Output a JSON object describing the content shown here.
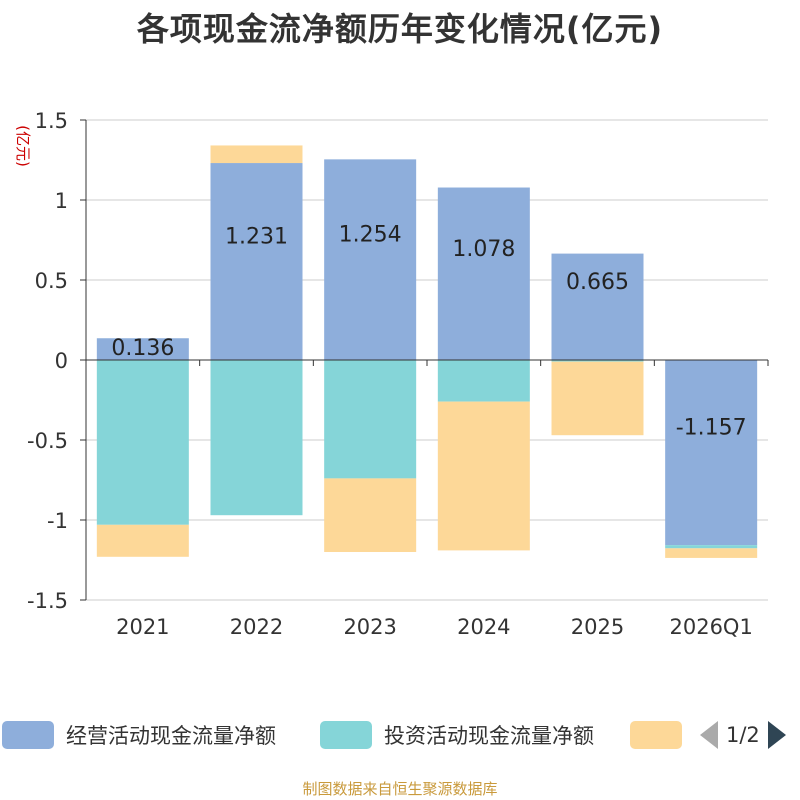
{
  "title": "各项现金流净额历年变化情况(亿元)",
  "source": "制图数据来自恒生聚源数据库",
  "legend_page": "1/2",
  "colors": {
    "operating": "#8eaedb",
    "investing": "#85d5d8",
    "financing": "#fdd898",
    "unit_label": "#cc0000"
  },
  "chart_data": {
    "type": "bar",
    "stacked": true,
    "categories": [
      "2021",
      "2022",
      "2023",
      "2024",
      "2025",
      "2026Q1"
    ],
    "ylabel": "(亿元)",
    "ylim": [
      -1.5,
      1.5
    ],
    "yticks": [
      1.5,
      1,
      0.5,
      0,
      -0.5,
      -1,
      -1.5
    ],
    "ytick_labels": [
      "1.5",
      "1",
      "0.5",
      "0",
      "-0.5",
      "-1",
      "-1.5"
    ],
    "grid": true,
    "legend_position": "bottom",
    "series": [
      {
        "name": "经营活动现金流量净额",
        "values": [
          0.136,
          1.231,
          1.254,
          1.078,
          0.665,
          -1.157
        ],
        "labels": [
          "0.136",
          "1.231",
          "1.254",
          "1.078",
          "0.665",
          "-1.157"
        ]
      },
      {
        "name": "投资活动现金流量净额",
        "values": [
          -1.03,
          -0.97,
          -0.74,
          -0.26,
          -0.01,
          -0.02
        ]
      },
      {
        "name": "",
        "values": [
          -0.2,
          0.11,
          -0.46,
          -0.93,
          -0.46,
          -0.06
        ]
      }
    ]
  }
}
